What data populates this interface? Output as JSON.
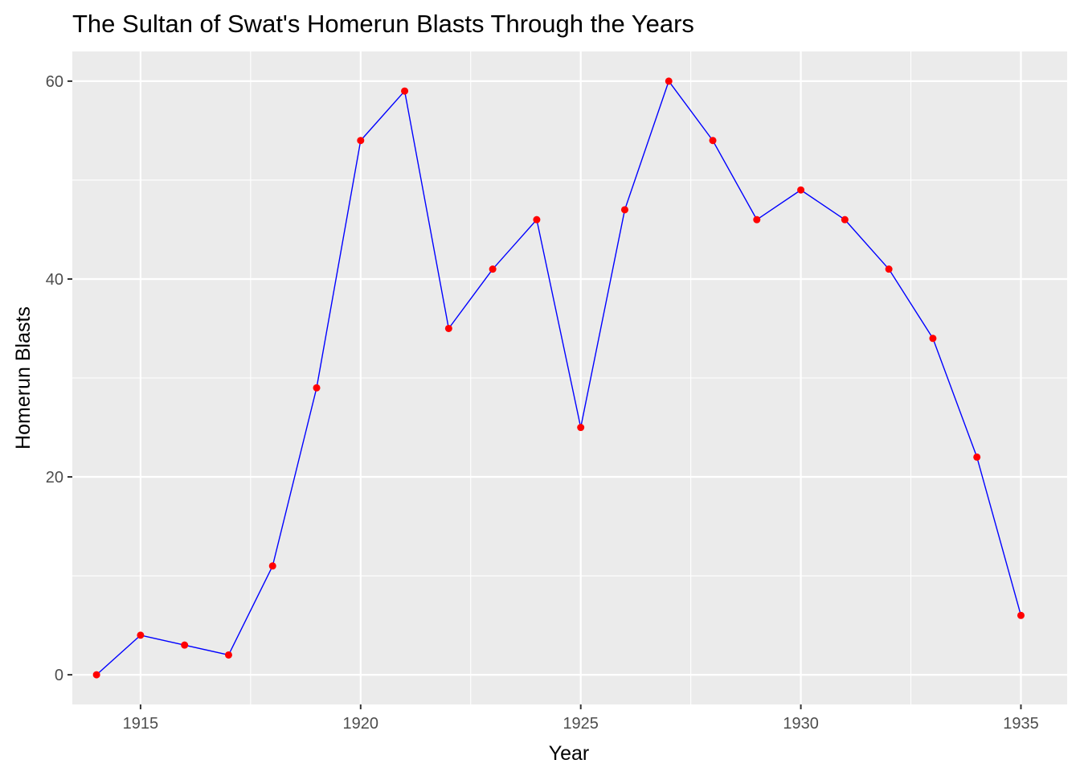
{
  "chart_data": {
    "type": "line",
    "title": "The Sultan of Swat's Homerun Blasts Through the Years",
    "xlabel": "Year",
    "ylabel": "Homerun Blasts",
    "x": [
      1914,
      1915,
      1916,
      1917,
      1918,
      1919,
      1920,
      1921,
      1922,
      1923,
      1924,
      1925,
      1926,
      1927,
      1928,
      1929,
      1930,
      1931,
      1932,
      1933,
      1934,
      1935
    ],
    "series": [
      {
        "values": [
          0,
          4,
          3,
          2,
          11,
          29,
          54,
          59,
          35,
          41,
          46,
          25,
          47,
          60,
          54,
          46,
          49,
          46,
          41,
          34,
          22,
          6
        ]
      }
    ],
    "xlim": [
      1913.45,
      1936.05
    ],
    "ylim": [
      -3,
      63
    ],
    "x_ticks": [
      "1915",
      "1920",
      "1925",
      "1930",
      "1935"
    ],
    "y_ticks": [
      "0",
      "20",
      "40",
      "60"
    ],
    "grid": true,
    "line_color": "#0000ff",
    "point_color": "#ff0000",
    "panel_background": "#ebebeb",
    "grid_color": "#ffffff"
  }
}
